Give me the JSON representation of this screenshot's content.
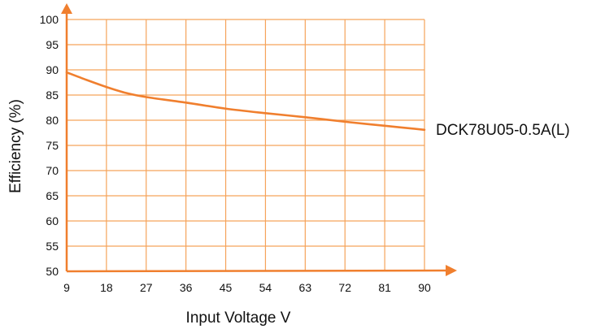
{
  "chart_data": {
    "type": "line",
    "xlabel": "Input Voltage V",
    "ylabel": "Efficiency (%)",
    "xlim": [
      9,
      90
    ],
    "ylim": [
      50,
      100
    ],
    "xticks": [
      9,
      18,
      27,
      36,
      45,
      54,
      63,
      72,
      81,
      90
    ],
    "yticks": [
      50,
      55,
      60,
      65,
      70,
      75,
      80,
      85,
      90,
      95,
      100
    ],
    "grid": true,
    "colors": {
      "grid": "#f5a35a",
      "axis": "#f07f2e",
      "line": "#f07f2e"
    },
    "series": [
      {
        "name": "DCK78U05-0.5A(L)",
        "x": [
          9,
          13.5,
          18,
          22.5,
          27,
          36,
          45,
          54,
          63,
          72,
          81,
          90
        ],
        "values": [
          89.5,
          88.0,
          86.6,
          85.4,
          84.6,
          83.5,
          82.3,
          81.4,
          80.6,
          79.7,
          78.9,
          78.1
        ]
      }
    ]
  }
}
